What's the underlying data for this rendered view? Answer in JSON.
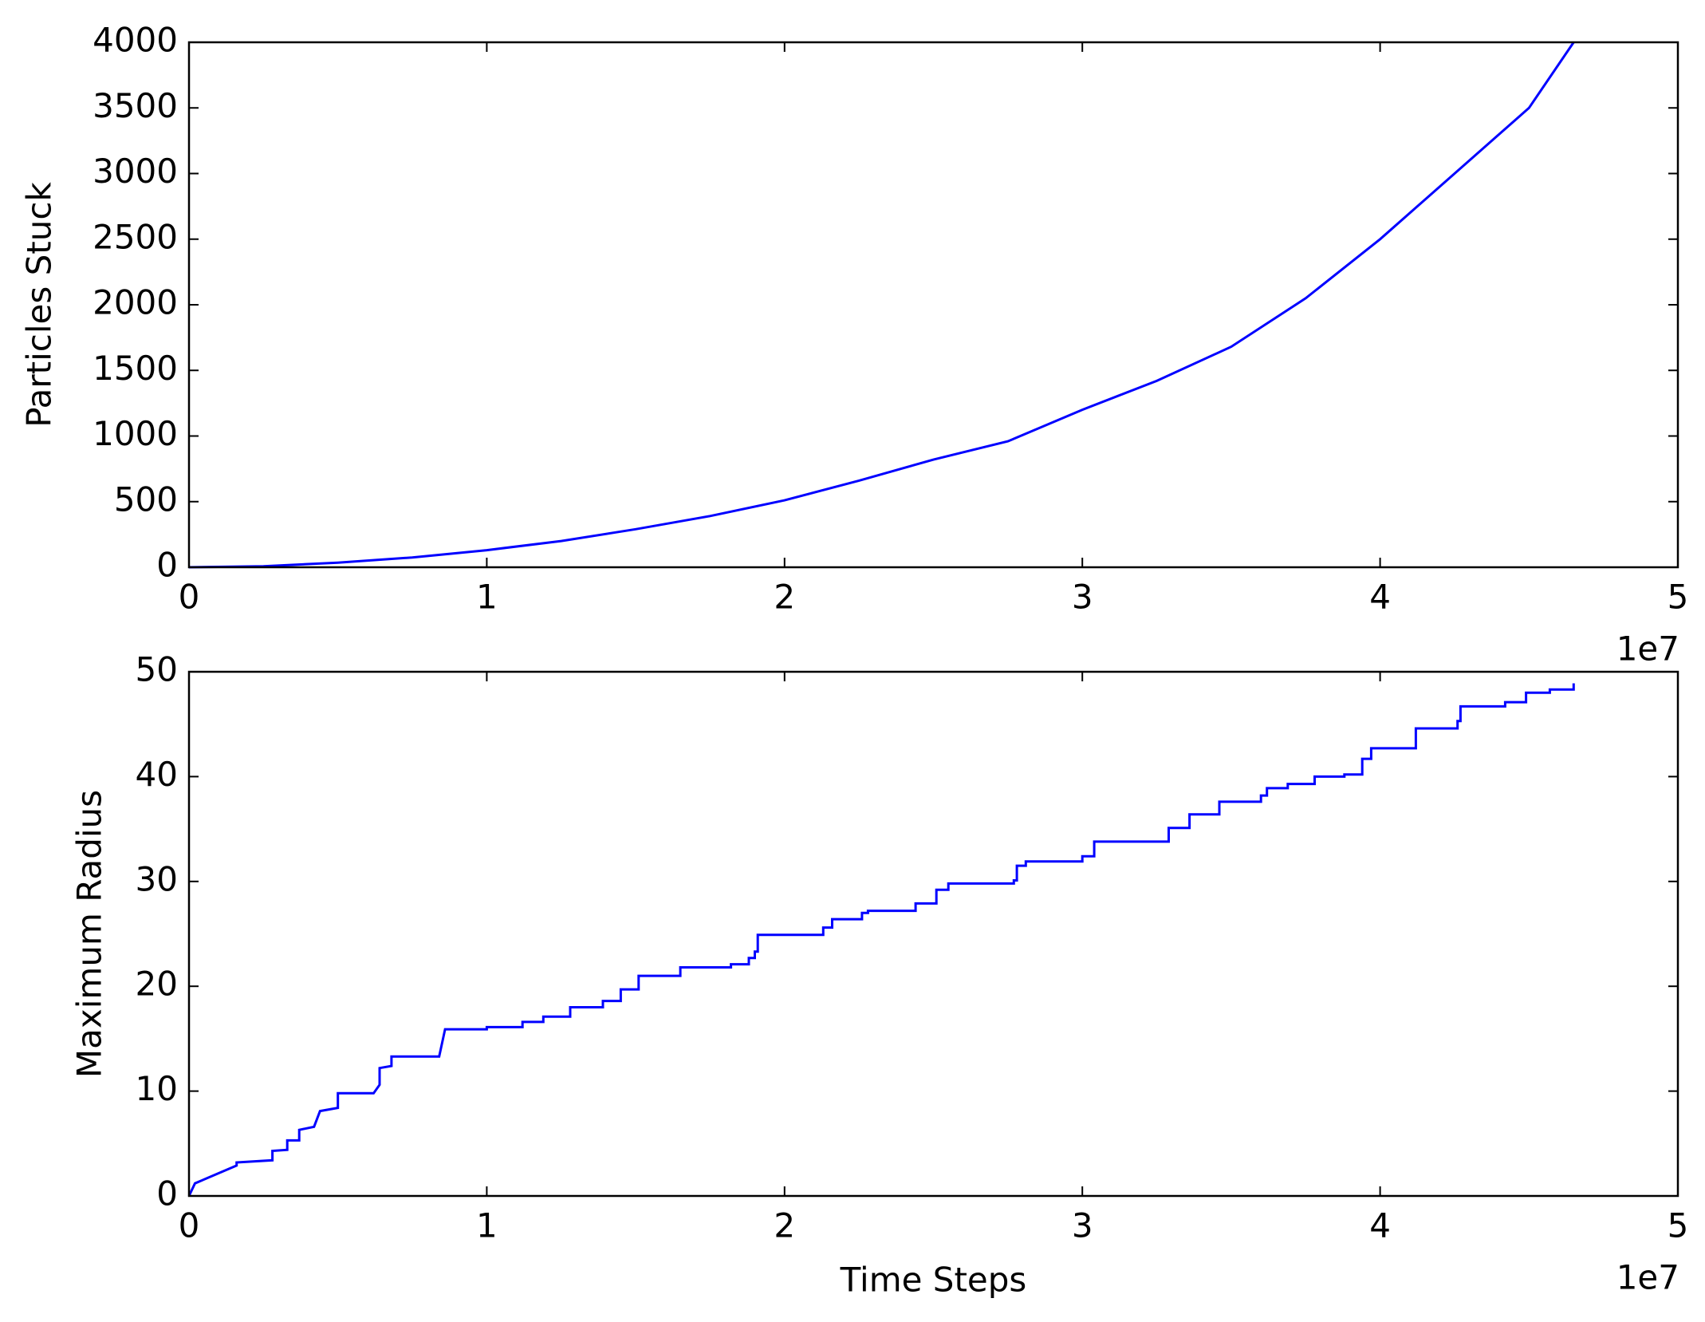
{
  "chart_data": [
    {
      "type": "line",
      "y_label": "Particles Stuck",
      "x_offset_label": "1e7",
      "color": "#0000ff",
      "x": [
        0,
        0.25,
        0.5,
        0.75,
        1,
        1.25,
        1.5,
        1.75,
        2,
        2.25,
        2.5,
        2.75,
        3,
        3.25,
        3.5,
        3.75,
        4,
        4.25,
        4.4,
        4.5,
        4.65
      ],
      "values": [
        0,
        8,
        35,
        75,
        130,
        200,
        290,
        390,
        510,
        660,
        820,
        960,
        1200,
        1420,
        1680,
        2050,
        2500,
        3000,
        3300,
        3500,
        4000
      ],
      "xlim": [
        0,
        5
      ],
      "ylim": [
        0,
        4000
      ],
      "xticks": [
        0,
        1,
        2,
        3,
        4,
        5
      ],
      "yticks": [
        0,
        500,
        1000,
        1500,
        2000,
        2500,
        3000,
        3500,
        4000
      ]
    },
    {
      "type": "line",
      "y_label": "Maximum Radius",
      "x_label": "Time Steps",
      "x_offset_label": "1e7",
      "color": "#0000ff",
      "x": [
        0,
        0.02,
        0.16,
        0.16,
        0.28,
        0.28,
        0.33,
        0.33,
        0.37,
        0.37,
        0.42,
        0.44,
        0.5,
        0.5,
        0.62,
        0.64,
        0.64,
        0.68,
        0.68,
        0.84,
        0.86,
        1.0,
        1.0,
        1.12,
        1.12,
        1.19,
        1.19,
        1.28,
        1.28,
        1.39,
        1.39,
        1.45,
        1.45,
        1.51,
        1.51,
        1.65,
        1.65,
        1.82,
        1.82,
        1.88,
        1.88,
        1.9,
        1.9,
        1.91,
        1.91,
        2.13,
        2.13,
        2.16,
        2.16,
        2.26,
        2.26,
        2.28,
        2.28,
        2.44,
        2.44,
        2.51,
        2.51,
        2.55,
        2.55,
        2.77,
        2.77,
        2.78,
        2.78,
        2.81,
        2.81,
        3.0,
        3.0,
        3.04,
        3.04,
        3.29,
        3.29,
        3.36,
        3.36,
        3.46,
        3.46,
        3.6,
        3.6,
        3.62,
        3.62,
        3.69,
        3.69,
        3.78,
        3.78,
        3.88,
        3.88,
        3.94,
        3.94,
        3.97,
        3.97,
        4.12,
        4.12,
        4.26,
        4.26,
        4.27,
        4.27,
        4.42,
        4.42,
        4.49,
        4.49,
        4.57,
        4.57,
        4.65,
        4.65
      ],
      "values": [
        0,
        1.2,
        2.9,
        3.2,
        3.4,
        4.3,
        4.4,
        5.3,
        5.3,
        6.3,
        6.6,
        8.1,
        8.4,
        9.8,
        9.8,
        10.6,
        12.2,
        12.4,
        13.3,
        13.3,
        15.9,
        15.9,
        16.1,
        16.1,
        16.6,
        16.6,
        17.1,
        17.1,
        18.0,
        18.0,
        18.6,
        18.6,
        19.7,
        19.7,
        21.0,
        21.0,
        21.8,
        21.8,
        22.1,
        22.1,
        22.7,
        22.7,
        23.3,
        23.3,
        24.9,
        24.9,
        25.6,
        25.6,
        26.4,
        26.4,
        27.0,
        27.0,
        27.2,
        27.2,
        27.9,
        27.9,
        29.2,
        29.2,
        29.8,
        29.8,
        30.1,
        30.1,
        31.5,
        31.5,
        31.9,
        31.9,
        32.4,
        32.4,
        33.8,
        33.8,
        35.1,
        35.1,
        36.4,
        36.4,
        37.6,
        37.6,
        38.2,
        38.2,
        38.9,
        38.9,
        39.3,
        39.3,
        40.0,
        40.0,
        40.2,
        40.2,
        41.7,
        41.7,
        42.7,
        42.7,
        44.6,
        44.6,
        45.3,
        45.3,
        46.7,
        46.7,
        47.1,
        47.1,
        48.0,
        48.0,
        48.3,
        48.3,
        48.9
      ],
      "xlim": [
        0,
        5
      ],
      "ylim": [
        0,
        50
      ],
      "xticks": [
        0,
        1,
        2,
        3,
        4,
        5
      ],
      "yticks": [
        0,
        10,
        20,
        30,
        40,
        50
      ]
    }
  ]
}
